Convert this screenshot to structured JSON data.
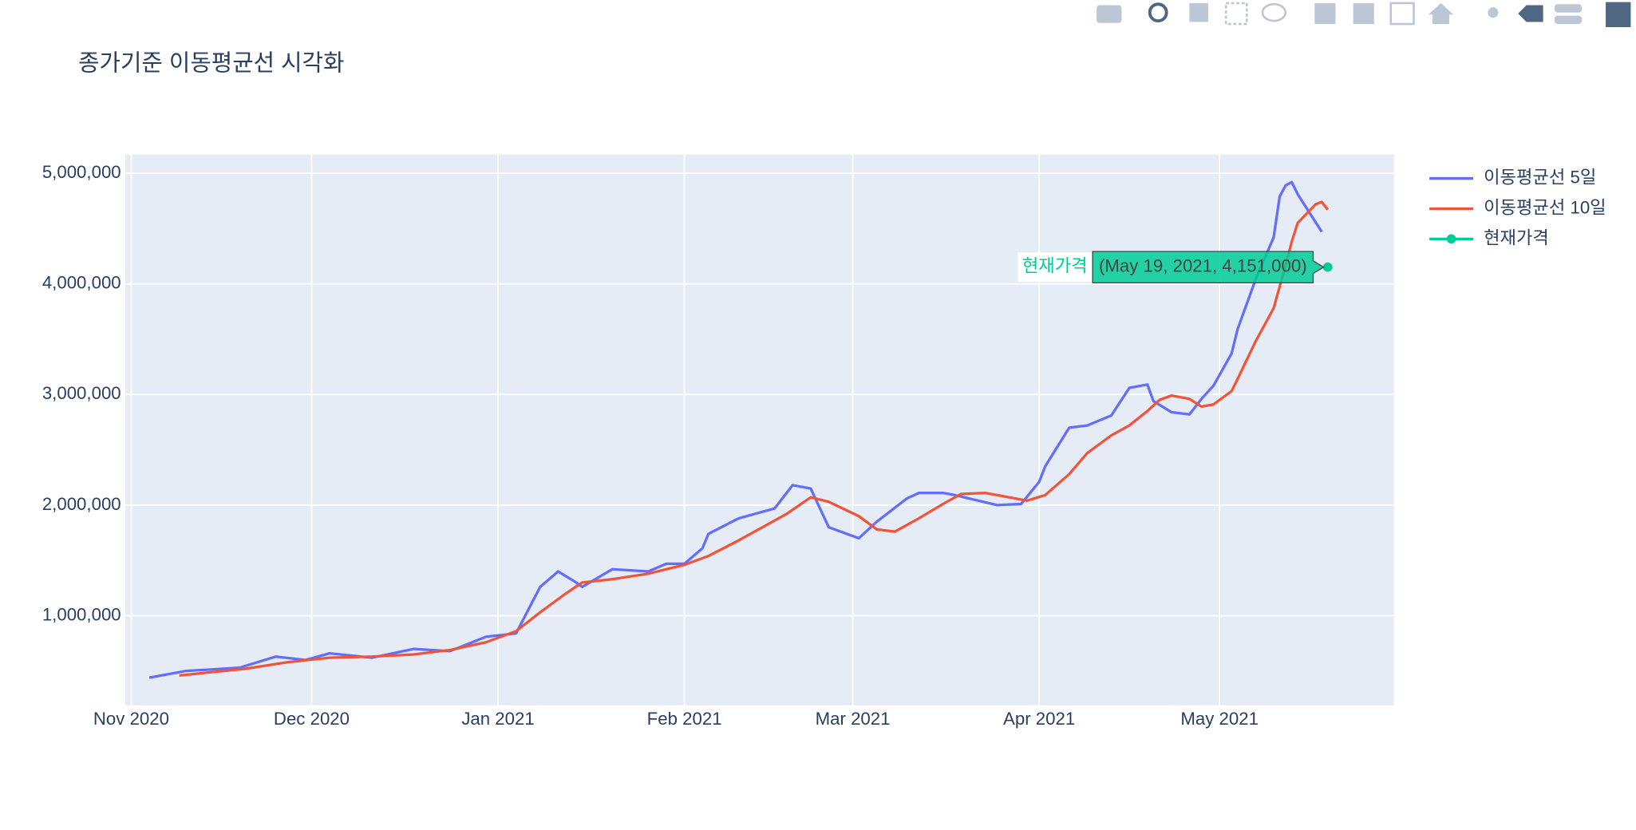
{
  "chart_data": {
    "type": "line",
    "title": "종가기준 이동평균선 시각화",
    "xlim": [
      "2020-10-31",
      "2021-05-30"
    ],
    "xticks": [
      {
        "value": "2020-11",
        "label": "Nov 2020"
      },
      {
        "value": "2020-12",
        "label": "Dec 2020"
      },
      {
        "value": "2021-01",
        "label": "Jan 2021"
      },
      {
        "value": "2021-02",
        "label": "Feb 2021"
      },
      {
        "value": "2021-03",
        "label": "Mar 2021"
      },
      {
        "value": "2021-04",
        "label": "Apr 2021"
      },
      {
        "value": "2021-05",
        "label": "May 2021"
      }
    ],
    "ylim": [
      190000,
      5170000
    ],
    "yticks": [
      {
        "value": 1000000,
        "label": "1,000,000"
      },
      {
        "value": 2000000,
        "label": "2,000,000"
      },
      {
        "value": 3000000,
        "label": "3,000,000"
      },
      {
        "value": 4000000,
        "label": "4,000,000"
      },
      {
        "value": 5000000,
        "label": "5,000,000"
      }
    ],
    "grid": true,
    "legend": "right",
    "series": [
      {
        "name": "이동평균선 5일",
        "color": "#636efa",
        "mode": "lines",
        "x": [
          "2020-11-04",
          "2020-11-10",
          "2020-11-19",
          "2020-11-25",
          "2020-11-30",
          "2020-12-04",
          "2020-12-11",
          "2020-12-18",
          "2020-12-24",
          "2020-12-30",
          "2021-01-04",
          "2021-01-06",
          "2021-01-08",
          "2021-01-11",
          "2021-01-14",
          "2021-01-15",
          "2021-01-20",
          "2021-01-26",
          "2021-01-29",
          "2021-02-01",
          "2021-02-04",
          "2021-02-05",
          "2021-02-10",
          "2021-02-16",
          "2021-02-19",
          "2021-02-22",
          "2021-02-25",
          "2021-03-02",
          "2021-03-05",
          "2021-03-10",
          "2021-03-12",
          "2021-03-16",
          "2021-03-18",
          "2021-03-25",
          "2021-03-29",
          "2021-04-01",
          "2021-04-02",
          "2021-04-06",
          "2021-04-09",
          "2021-04-13",
          "2021-04-16",
          "2021-04-19",
          "2021-04-20",
          "2021-04-23",
          "2021-04-26",
          "2021-04-28",
          "2021-04-30",
          "2021-05-03",
          "2021-05-04",
          "2021-05-07",
          "2021-05-10",
          "2021-05-11",
          "2021-05-12",
          "2021-05-13",
          "2021-05-14",
          "2021-05-18"
        ],
        "values": [
          440000,
          500000,
          530000,
          630000,
          600000,
          660000,
          620000,
          700000,
          680000,
          810000,
          840000,
          1050000,
          1260000,
          1400000,
          1300000,
          1260000,
          1420000,
          1400000,
          1470000,
          1470000,
          1610000,
          1740000,
          1880000,
          1970000,
          2180000,
          2150000,
          1800000,
          1700000,
          1850000,
          2060000,
          2110000,
          2110000,
          2090000,
          2000000,
          2010000,
          2210000,
          2350000,
          2700000,
          2720000,
          2810000,
          3060000,
          3090000,
          2940000,
          2840000,
          2820000,
          2960000,
          3080000,
          3370000,
          3590000,
          4040000,
          4420000,
          4790000,
          4890000,
          4920000,
          4810000,
          4470000
        ]
      },
      {
        "name": "이동평균선 10일",
        "color": "#ef553b",
        "mode": "lines",
        "x": [
          "2020-11-09",
          "2020-11-20",
          "2020-11-27",
          "2020-12-04",
          "2020-12-11",
          "2020-12-18",
          "2020-12-24",
          "2020-12-30",
          "2021-01-04",
          "2021-01-08",
          "2021-01-12",
          "2021-01-15",
          "2021-01-20",
          "2021-01-26",
          "2021-02-01",
          "2021-02-05",
          "2021-02-10",
          "2021-02-15",
          "2021-02-18",
          "2021-02-22",
          "2021-02-25",
          "2021-03-02",
          "2021-03-05",
          "2021-03-08",
          "2021-03-12",
          "2021-03-16",
          "2021-03-19",
          "2021-03-23",
          "2021-03-26",
          "2021-03-30",
          "2021-04-02",
          "2021-04-06",
          "2021-04-09",
          "2021-04-13",
          "2021-04-16",
          "2021-04-19",
          "2021-04-21",
          "2021-04-23",
          "2021-04-26",
          "2021-04-28",
          "2021-04-30",
          "2021-05-03",
          "2021-05-04",
          "2021-05-07",
          "2021-05-10",
          "2021-05-12",
          "2021-05-13",
          "2021-05-14",
          "2021-05-17",
          "2021-05-18",
          "2021-05-19"
        ],
        "values": [
          460000,
          520000,
          580000,
          620000,
          630000,
          650000,
          690000,
          760000,
          860000,
          1030000,
          1190000,
          1300000,
          1330000,
          1380000,
          1460000,
          1540000,
          1680000,
          1830000,
          1920000,
          2070000,
          2030000,
          1900000,
          1780000,
          1760000,
          1880000,
          2010000,
          2100000,
          2110000,
          2080000,
          2040000,
          2090000,
          2280000,
          2470000,
          2630000,
          2720000,
          2850000,
          2950000,
          2990000,
          2960000,
          2890000,
          2910000,
          3030000,
          3140000,
          3480000,
          3780000,
          4170000,
          4380000,
          4550000,
          4720000,
          4740000,
          4670000
        ]
      },
      {
        "name": "현재가격",
        "color": "#00cc96",
        "mode": "lines+markers",
        "x": [
          "2021-05-19"
        ],
        "values": [
          4151000
        ]
      }
    ],
    "hover_label": "(May 19, 2021, 4,151,000)"
  }
}
